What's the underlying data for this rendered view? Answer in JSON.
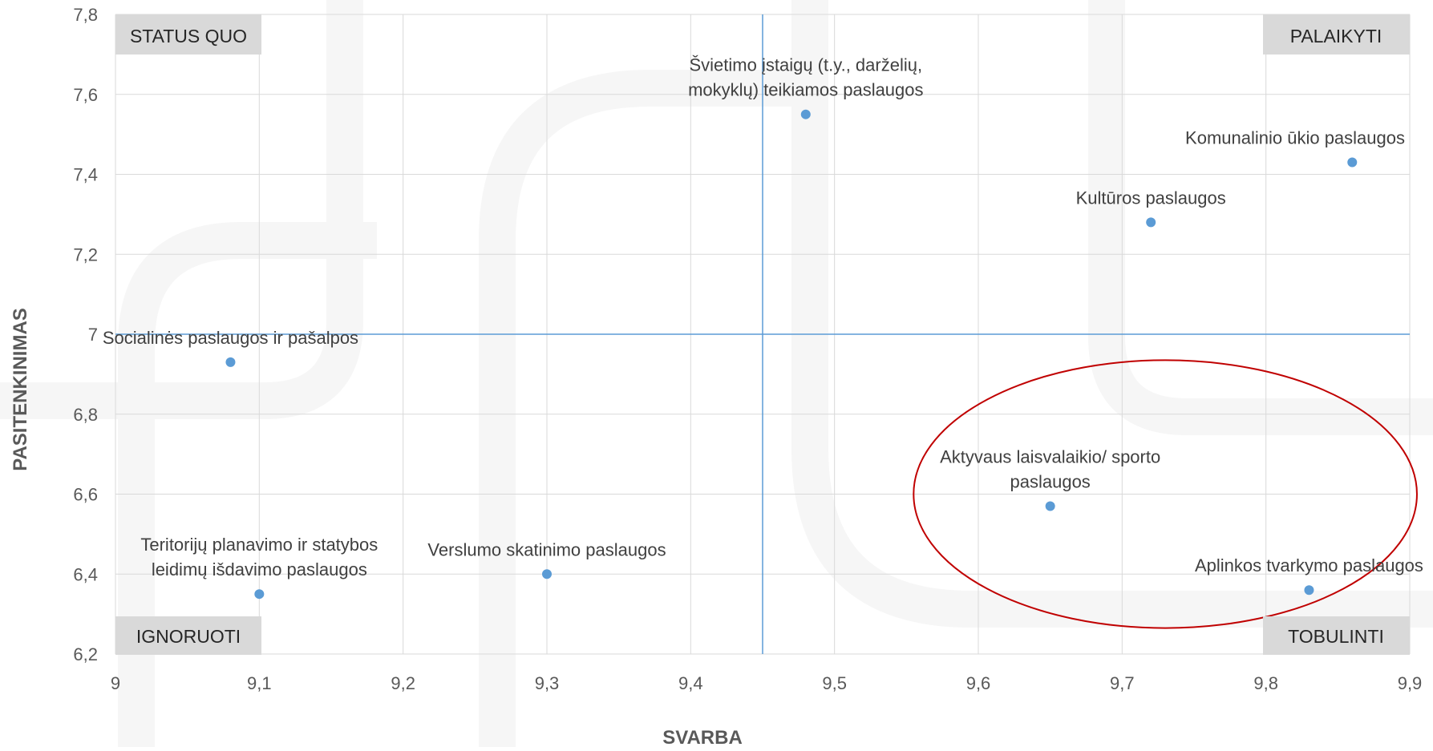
{
  "chart_data": {
    "type": "scatter",
    "xlabel": "SVARBA",
    "ylabel": "PASITENKINIMAS",
    "xlim": [
      9,
      9.9
    ],
    "ylim": [
      6.2,
      7.8
    ],
    "x_ticks": [
      "9",
      "9,1",
      "9,2",
      "9,3",
      "9,4",
      "9,5",
      "9,6",
      "9,7",
      "9,8",
      "9,9"
    ],
    "y_ticks": [
      "6,2",
      "6,4",
      "6,6",
      "6,8",
      "7",
      "7,2",
      "7,4",
      "7,6",
      "7,8"
    ],
    "grid": true,
    "point_color": "#5b9bd5",
    "reference_lines": {
      "x": 9.45,
      "y": 7.0,
      "color": "#5b9bd5"
    },
    "quadrant_labels": {
      "top_left": "STATUS QUO",
      "top_right": "PALAIKYTI",
      "bottom_left": "IGNORUOTI",
      "bottom_right": "TOBULINTI"
    },
    "highlight_ellipse": {
      "color": "#c00000",
      "center": [
        9.73,
        6.6
      ],
      "radius": [
        0.175,
        0.335
      ]
    },
    "points": [
      {
        "x": 9.48,
        "y": 7.55,
        "label": [
          "Švietimo įstaigų (t.y., darželių,",
          "mokyklų) teikiamos paslaugos"
        ]
      },
      {
        "x": 9.86,
        "y": 7.43,
        "label": [
          "Komunalinio ūkio paslaugos"
        ]
      },
      {
        "x": 9.72,
        "y": 7.28,
        "label": [
          "Kultūros paslaugos"
        ]
      },
      {
        "x": 9.08,
        "y": 6.93,
        "label": [
          "Socialinės paslaugos ir pašalpos"
        ]
      },
      {
        "x": 9.65,
        "y": 6.57,
        "label": [
          "Aktyvaus laisvalaikio/ sporto",
          "paslaugos"
        ]
      },
      {
        "x": 9.3,
        "y": 6.4,
        "label": [
          "Verslumo skatinimo paslaugos"
        ]
      },
      {
        "x": 9.1,
        "y": 6.35,
        "label": [
          "Teritorijų planavimo ir statybos",
          "leidimų išdavimo paslaugos"
        ]
      },
      {
        "x": 9.83,
        "y": 6.36,
        "label": [
          "Aplinkos tvarkymo paslaugos"
        ]
      }
    ]
  }
}
